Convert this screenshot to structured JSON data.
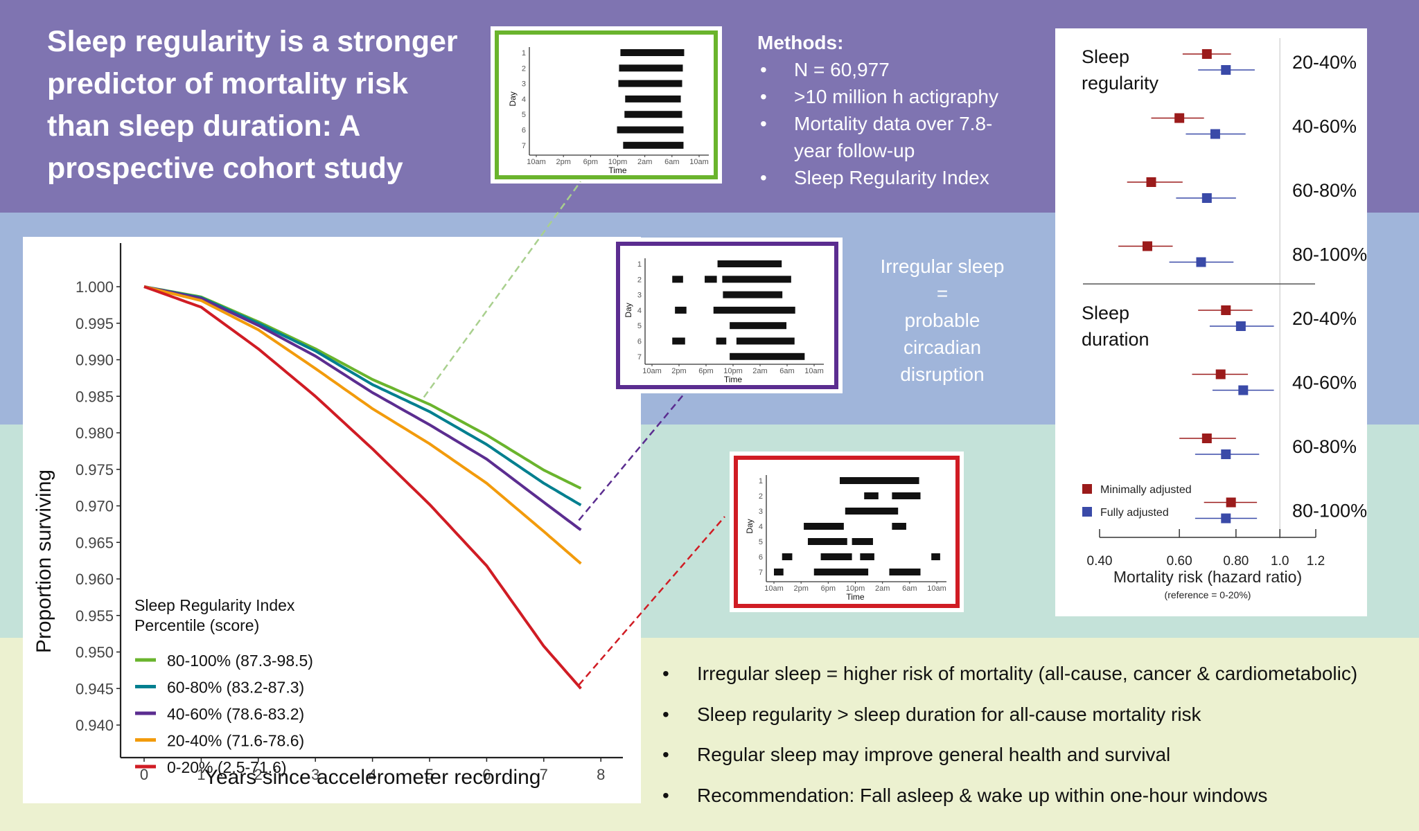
{
  "title": "Sleep regularity is a stronger predictor of mortality risk than sleep duration: A prospective cohort study",
  "title_lines": [
    "Sleep regularity is a stronger",
    "predictor of mortality risk",
    "than sleep duration: A",
    "prospective cohort study"
  ],
  "colors": {
    "band_purple": "#7f74b1",
    "band_blue": "#a0b5da",
    "band_teal": "#c4e2d9",
    "band_cream": "#ecf1d0",
    "green": "#6ab42d",
    "teal": "#007f8f",
    "purple": "#5b2d90",
    "orange": "#f29b0c",
    "red": "#d01c24",
    "minimally_adjusted": "#9b1b1b",
    "fully_adjusted": "#3a4aa8"
  },
  "methods": {
    "heading": "Methods:",
    "bullet": "•",
    "items": [
      " N = 60,977",
      ">10 million h actigraphy",
      "Mortality data over 7.8-",
      "year follow-up",
      "Sleep Regularity Index"
    ],
    "item_has_bullet": [
      true,
      true,
      true,
      false,
      true
    ]
  },
  "irregular_callout": {
    "lines": [
      "Irregular sleep",
      "=",
      "probable",
      "circadian",
      "disruption"
    ]
  },
  "bullets": {
    "bullet": "•",
    "items": [
      "Irregular sleep = higher risk of mortality (all-cause, cancer & cardiometabolic)",
      "Sleep regularity > sleep duration for all-cause mortality risk",
      "Regular sleep may improve general health and survival",
      "Recommendation: Fall asleep & wake up within one-hour windows"
    ]
  },
  "chart_data": [
    {
      "type": "line",
      "title": "",
      "xlabel": "Years since accelerometer recording",
      "ylabel": "Proportion surviving",
      "xlim": [
        0,
        8
      ],
      "ylim": [
        0.94,
        1.0
      ],
      "x_ticks": [
        "0",
        "1",
        "2",
        "3",
        "4",
        "5",
        "6",
        "7",
        "8"
      ],
      "y_ticks": [
        "1.000",
        "0.995",
        "0.990",
        "0.985",
        "0.980",
        "0.975",
        "0.970",
        "0.965",
        "0.960",
        "0.955",
        "0.950",
        "0.945",
        "0.940"
      ],
      "grid": false,
      "legend_title": [
        "Sleep Regularity Index",
        "Percentile (score)"
      ],
      "legend_position": "bottom-left",
      "x": [
        0,
        1,
        2,
        3,
        4,
        5,
        6,
        7,
        7.65
      ],
      "series": [
        {
          "name": "80-100% (87.3-98.5)",
          "color_key": "green",
          "values": [
            1.0,
            0.9986,
            0.9952,
            0.9915,
            0.9873,
            0.9839,
            0.9797,
            0.9749,
            0.9724
          ]
        },
        {
          "name": "60-80% (83.2-87.3)",
          "color_key": "teal",
          "values": [
            1.0,
            0.9985,
            0.995,
            0.9912,
            0.9866,
            0.9829,
            0.9784,
            0.9731,
            0.9701
          ]
        },
        {
          "name": "40-60% (78.6-83.2)",
          "color_key": "purple",
          "values": [
            1.0,
            0.9984,
            0.9947,
            0.9905,
            0.9855,
            0.9811,
            0.9764,
            0.9705,
            0.9667
          ]
        },
        {
          "name": "20-40% (71.6-78.6)",
          "color_key": "orange",
          "values": [
            1.0,
            0.9981,
            0.9941,
            0.9888,
            0.9833,
            0.9785,
            0.9731,
            0.9665,
            0.9621
          ]
        },
        {
          "name": "0-20% (2.5-71.6)",
          "color_key": "red",
          "values": [
            1.0,
            0.9972,
            0.9915,
            0.985,
            0.9778,
            0.9702,
            0.9618,
            0.9508,
            0.945
          ]
        }
      ]
    },
    {
      "type": "forest",
      "xlabel": "Mortality risk (hazard ratio)",
      "subtitle": "(reference = 0-20%)",
      "x_scale": "log",
      "xlim": [
        0.4,
        1.2
      ],
      "x_ticks": [
        "0.40",
        "0.60",
        "0.80",
        "1.0",
        "1.2"
      ],
      "x_tick_values": [
        0.4,
        0.6,
        0.8,
        1.0,
        1.2
      ],
      "reference_line": 1.0,
      "legend": [
        "Minimally adjusted",
        "Fully adjusted"
      ],
      "legend_position": "bottom-left",
      "groups": [
        {
          "label_lines": [
            "Sleep",
            "regularity"
          ],
          "rows": [
            {
              "label": "20-40%",
              "min": {
                "hr": 0.69,
                "lo": 0.61,
                "hi": 0.78
              },
              "full": {
                "hr": 0.76,
                "lo": 0.66,
                "hi": 0.88
              }
            },
            {
              "label": "40-60%",
              "min": {
                "hr": 0.6,
                "lo": 0.52,
                "hi": 0.68
              },
              "full": {
                "hr": 0.72,
                "lo": 0.62,
                "hi": 0.84
              }
            },
            {
              "label": "60-80%",
              "min": {
                "hr": 0.52,
                "lo": 0.46,
                "hi": 0.61
              },
              "full": {
                "hr": 0.69,
                "lo": 0.59,
                "hi": 0.8
              }
            },
            {
              "label": "80-100%",
              "min": {
                "hr": 0.51,
                "lo": 0.44,
                "hi": 0.58
              },
              "full": {
                "hr": 0.67,
                "lo": 0.57,
                "hi": 0.79
              }
            }
          ]
        },
        {
          "label_lines": [
            "Sleep",
            "duration"
          ],
          "rows": [
            {
              "label": "20-40%",
              "min": {
                "hr": 0.76,
                "lo": 0.66,
                "hi": 0.87
              },
              "full": {
                "hr": 0.82,
                "lo": 0.7,
                "hi": 0.97
              }
            },
            {
              "label": "40-60%",
              "min": {
                "hr": 0.74,
                "lo": 0.64,
                "hi": 0.85
              },
              "full": {
                "hr": 0.83,
                "lo": 0.71,
                "hi": 0.97
              }
            },
            {
              "label": "60-80%",
              "min": {
                "hr": 0.69,
                "lo": 0.6,
                "hi": 0.8
              },
              "full": {
                "hr": 0.76,
                "lo": 0.65,
                "hi": 0.9
              }
            },
            {
              "label": "80-100%",
              "min": {
                "hr": 0.78,
                "lo": 0.68,
                "hi": 0.89
              },
              "full": {
                "hr": 0.76,
                "lo": 0.65,
                "hi": 0.89
              }
            }
          ]
        }
      ]
    },
    {
      "type": "gantt",
      "name": "regular-sleep-example",
      "frame_color_key": "green",
      "xlabel": "Time",
      "ylabel": "Day",
      "x_ticks": [
        "10am",
        "2pm",
        "6pm",
        "10pm",
        "2am",
        "6am",
        "10am"
      ],
      "y_ticks": [
        "1",
        "2",
        "3",
        "4",
        "5",
        "6",
        "7"
      ],
      "x_unit": "hours since 10am",
      "xlim": [
        0,
        24
      ],
      "days": [
        [
          [
            12.4,
            21.8
          ]
        ],
        [
          [
            12.2,
            21.6
          ]
        ],
        [
          [
            12.1,
            21.5
          ]
        ],
        [
          [
            13.1,
            21.3
          ]
        ],
        [
          [
            13.0,
            21.5
          ]
        ],
        [
          [
            11.9,
            21.7
          ]
        ],
        [
          [
            12.8,
            21.7
          ]
        ]
      ]
    },
    {
      "type": "gantt",
      "name": "intermediate-sleep-example",
      "frame_color_key": "purple",
      "xlabel": "Time",
      "ylabel": "Day",
      "x_ticks": [
        "10am",
        "2pm",
        "6pm",
        "10pm",
        "2am",
        "6am",
        "10am"
      ],
      "y_ticks": [
        "1",
        "2",
        "3",
        "4",
        "5",
        "6",
        "7"
      ],
      "x_unit": "hours since 10am",
      "xlim": [
        0,
        24
      ],
      "days": [
        [
          [
            9.7,
            19.2
          ]
        ],
        [
          [
            3.0,
            4.6
          ],
          [
            7.8,
            9.6
          ],
          [
            10.4,
            20.6
          ]
        ],
        [
          [
            10.5,
            19.3
          ]
        ],
        [
          [
            3.4,
            5.1
          ],
          [
            9.1,
            21.2
          ]
        ],
        [
          [
            11.5,
            19.9
          ]
        ],
        [
          [
            3.0,
            4.9
          ],
          [
            9.5,
            11.0
          ],
          [
            12.5,
            21.1
          ]
        ],
        [
          [
            11.5,
            22.6
          ]
        ]
      ]
    },
    {
      "type": "gantt",
      "name": "irregular-sleep-example",
      "frame_color_key": "red",
      "xlabel": "Time",
      "ylabel": "Day",
      "x_ticks": [
        "10am",
        "2pm",
        "6pm",
        "10pm",
        "2am",
        "6am",
        "10am"
      ],
      "y_ticks": [
        "1",
        "2",
        "3",
        "4",
        "5",
        "6",
        "7"
      ],
      "x_unit": "hours since 10am",
      "xlim": [
        0,
        24
      ],
      "days": [
        [
          [
            9.7,
            21.4
          ]
        ],
        [
          [
            13.3,
            15.4
          ],
          [
            17.4,
            21.6
          ]
        ],
        [
          [
            10.5,
            18.3
          ]
        ],
        [
          [
            4.4,
            10.3
          ],
          [
            17.4,
            19.5
          ]
        ],
        [
          [
            5.0,
            10.8
          ],
          [
            11.5,
            14.6
          ]
        ],
        [
          [
            1.2,
            2.7
          ],
          [
            6.9,
            11.5
          ],
          [
            12.7,
            14.8
          ],
          [
            23.2,
            24.5
          ]
        ],
        [
          [
            0.0,
            1.4
          ],
          [
            5.9,
            13.9
          ],
          [
            17.0,
            21.6
          ]
        ]
      ]
    }
  ]
}
